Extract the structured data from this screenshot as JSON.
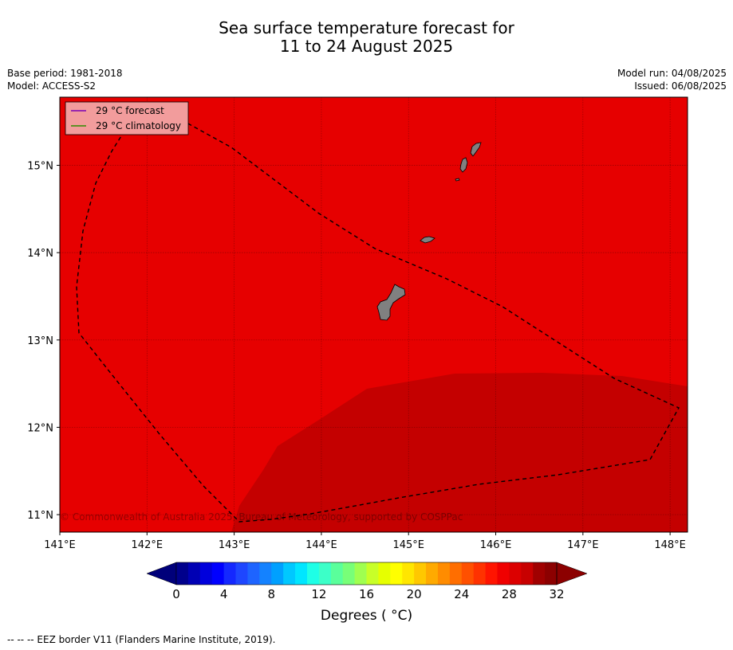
{
  "header": {
    "title_line1": "Sea surface temperature forecast for",
    "title_line2": "11 to 24 August 2025",
    "base_period": "Base period: 1981-2018",
    "model": "Model: ACCESS-S2",
    "model_run": "Model run: 04/08/2025",
    "issued": "Issued: 06/08/2025"
  },
  "map": {
    "lon_ticks": [
      "141°E",
      "142°E",
      "143°E",
      "144°E",
      "145°E",
      "146°E",
      "147°E",
      "148°E"
    ],
    "lat_ticks": [
      "15°N",
      "14°N",
      "13°N",
      "12°N",
      "11°N"
    ],
    "lon_range": [
      141.0,
      148.2
    ],
    "lat_range": [
      10.8,
      15.78
    ],
    "copyright": "© Commonwealth of Australia 2025, Bureau of Meteorology, supported by COSPPac",
    "legend": [
      {
        "label": "29 °C  forecast",
        "color": "#7b00b4"
      },
      {
        "label": "29 °C  climatology",
        "color": "#2e8b00"
      }
    ],
    "colors": {
      "region_main": "#e60000",
      "region_warm": "#c40000",
      "land": "#808080",
      "legend_bg": "#f29c9c"
    }
  },
  "colorbar": {
    "ticks": [
      "0",
      "4",
      "8",
      "12",
      "16",
      "20",
      "24",
      "28",
      "32"
    ],
    "label": "Degrees ( °C)",
    "colors": [
      "#00008c",
      "#0000b4",
      "#0000dc",
      "#0000ff",
      "#1428ff",
      "#1e46ff",
      "#1e64ff",
      "#1482ff",
      "#00a0ff",
      "#00c8ff",
      "#00e6ff",
      "#1effe6",
      "#3cffc8",
      "#5aff9b",
      "#78ff78",
      "#a0ff50",
      "#c8ff28",
      "#e6ff00",
      "#ffff00",
      "#ffe600",
      "#ffc800",
      "#ffaa00",
      "#ff8c00",
      "#ff6e00",
      "#ff5000",
      "#ff3200",
      "#ff1400",
      "#f00000",
      "#dc0000",
      "#c80000",
      "#a00000",
      "#8c0000"
    ]
  },
  "footer": {
    "eez_note": "--  --  -- EEZ border V11 (Flanders Marine Institute, 2019)."
  }
}
